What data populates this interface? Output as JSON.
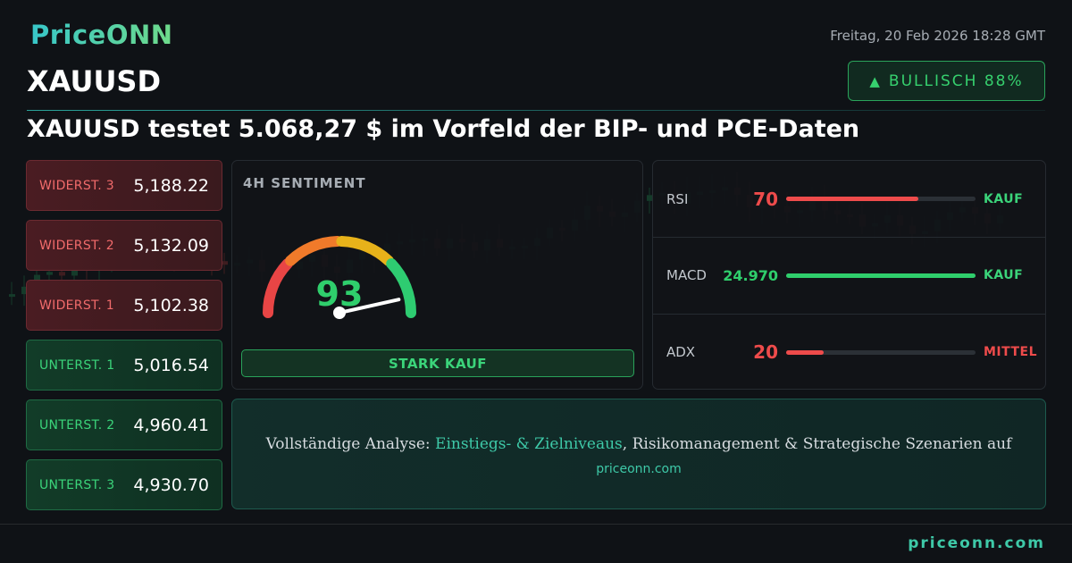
{
  "brand": {
    "logo": "PriceONN",
    "footer_url": "priceonn.com"
  },
  "header": {
    "symbol": "XAUUSD",
    "date": "Freitag, 20 Feb 2026 18:28 GMT",
    "badge_icon": "up-triangle-icon",
    "badge": "BULLISCH 88%",
    "headline": "XAUUSD testet 5.068,27 $ im Vorfeld der BIP- und PCE-Daten"
  },
  "levels": [
    {
      "label": "WIDERST. 3",
      "value": "5,188.22",
      "kind": "resistance"
    },
    {
      "label": "WIDERST. 2",
      "value": "5,132.09",
      "kind": "resistance"
    },
    {
      "label": "WIDERST. 1",
      "value": "5,102.38",
      "kind": "resistance"
    },
    {
      "label": "UNTERST. 1",
      "value": "5,016.54",
      "kind": "support"
    },
    {
      "label": "UNTERST. 2",
      "value": "4,960.41",
      "kind": "support"
    },
    {
      "label": "UNTERST. 3",
      "value": "4,930.70",
      "kind": "support"
    }
  ],
  "sentiment": {
    "title": "4H SENTIMENT",
    "score": "93",
    "score_value": 93,
    "verdict": "STARK KAUF",
    "colors": [
      "#e84545",
      "#f07a2a",
      "#e7b21a",
      "#2ecc71"
    ]
  },
  "indicators": [
    {
      "name": "RSI",
      "value": "70",
      "fill": 0.7,
      "color": "#ee4b4b",
      "signal": "KAUF",
      "signal_color": "#3bd47a"
    },
    {
      "name": "MACD",
      "value": "24.970",
      "fill": 1.0,
      "color": "#2fce6c",
      "signal": "KAUF",
      "signal_color": "#3bd47a"
    },
    {
      "name": "ADX",
      "value": "20",
      "fill": 0.2,
      "color": "#ee4b4b",
      "signal": "MITTEL",
      "signal_color": "#ee4b4b"
    }
  ],
  "cta": {
    "prefix": "Vollständige Analyse: ",
    "highlight": "Einstiegs- & Zielniveaus",
    "suffix": ", Risikomanagement & Strategische Szenarien auf",
    "url": "priceonn.com"
  }
}
